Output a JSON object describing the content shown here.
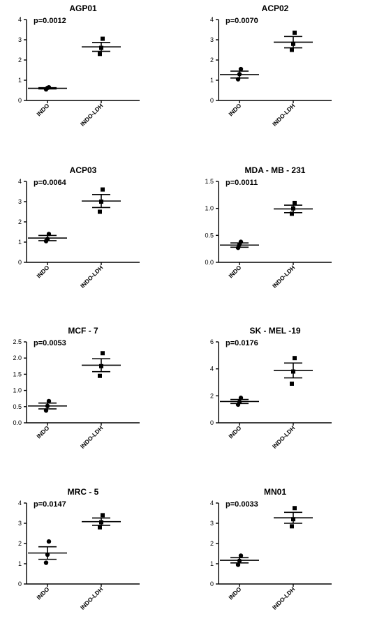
{
  "chart_data": [
    {
      "type": "scatter",
      "title": "AGP01",
      "annotation": "p=0.0012",
      "categories": [
        "INDO",
        "INDO-LDH"
      ],
      "ylim": [
        0,
        4
      ],
      "yticks": [
        "0",
        "1",
        "2",
        "3",
        "4"
      ],
      "groups": [
        {
          "name": "INDO",
          "marker": "circle",
          "points": [
            0.55,
            0.62,
            0.65
          ],
          "mean": 0.6,
          "sem": 0.03
        },
        {
          "name": "INDO-LDH",
          "marker": "square",
          "points": [
            2.3,
            2.6,
            3.05
          ],
          "mean": 2.65,
          "sem": 0.22
        }
      ]
    },
    {
      "type": "scatter",
      "title": "ACP02",
      "annotation": "p=0.0070",
      "categories": [
        "INDO",
        "INDO-LDH"
      ],
      "ylim": [
        0,
        4
      ],
      "yticks": [
        "0",
        "1",
        "2",
        "3",
        "4"
      ],
      "groups": [
        {
          "name": "INDO",
          "marker": "circle",
          "points": [
            1.05,
            1.3,
            1.55
          ],
          "mean": 1.28,
          "sem": 0.17
        },
        {
          "name": "INDO-LDH",
          "marker": "square",
          "points": [
            2.5,
            2.8,
            3.35
          ],
          "mean": 2.88,
          "sem": 0.28
        }
      ]
    },
    {
      "type": "scatter",
      "title": "ACP03",
      "annotation": "p=0.0064",
      "categories": [
        "INDO",
        "INDO-LDH"
      ],
      "ylim": [
        0,
        4
      ],
      "yticks": [
        "0",
        "1",
        "2",
        "3",
        "4"
      ],
      "groups": [
        {
          "name": "INDO",
          "marker": "circle",
          "points": [
            1.05,
            1.15,
            1.4
          ],
          "mean": 1.2,
          "sem": 0.13
        },
        {
          "name": "INDO-LDH",
          "marker": "square",
          "points": [
            2.5,
            3.0,
            3.6
          ],
          "mean": 3.03,
          "sem": 0.32
        }
      ]
    },
    {
      "type": "scatter",
      "title": "MDA - MB - 231",
      "annotation": "p=0.0011",
      "categories": [
        "INDO",
        "INDO-LDH"
      ],
      "ylim": [
        0,
        1.5
      ],
      "yticks": [
        "0.0",
        "0.5",
        "1.0",
        "1.5"
      ],
      "groups": [
        {
          "name": "INDO",
          "marker": "circle",
          "points": [
            0.27,
            0.33,
            0.38
          ],
          "mean": 0.32,
          "sem": 0.04
        },
        {
          "name": "INDO-LDH",
          "marker": "square",
          "points": [
            0.9,
            1.0,
            1.1
          ],
          "mean": 0.99,
          "sem": 0.07
        }
      ]
    },
    {
      "type": "scatter",
      "title": "MCF - 7",
      "annotation": "p=0.0053",
      "categories": [
        "INDO",
        "INDO-LDH"
      ],
      "ylim": [
        0,
        2.5
      ],
      "yticks": [
        "0.0",
        "0.5",
        "1.0",
        "1.5",
        "2.0",
        "2.5"
      ],
      "groups": [
        {
          "name": "INDO",
          "marker": "circle",
          "points": [
            0.38,
            0.52,
            0.67
          ],
          "mean": 0.52,
          "sem": 0.09
        },
        {
          "name": "INDO-LDH",
          "marker": "square",
          "points": [
            1.45,
            1.75,
            2.15
          ],
          "mean": 1.78,
          "sem": 0.2
        }
      ]
    },
    {
      "type": "scatter",
      "title": "SK - MEL -19",
      "annotation": "p=0.0176",
      "categories": [
        "INDO",
        "INDO-LDH"
      ],
      "ylim": [
        0,
        6
      ],
      "yticks": [
        "0",
        "2",
        "4",
        "6"
      ],
      "groups": [
        {
          "name": "INDO",
          "marker": "circle",
          "points": [
            1.35,
            1.55,
            1.85
          ],
          "mean": 1.58,
          "sem": 0.15
        },
        {
          "name": "INDO-LDH",
          "marker": "square",
          "points": [
            2.9,
            3.8,
            4.8
          ],
          "mean": 3.88,
          "sem": 0.55
        }
      ]
    },
    {
      "type": "scatter",
      "title": "MRC - 5",
      "annotation": "p=0.0147",
      "categories": [
        "INDO",
        "INDO-LDH"
      ],
      "ylim": [
        0,
        4
      ],
      "yticks": [
        "0",
        "1",
        "2",
        "3",
        "4"
      ],
      "groups": [
        {
          "name": "INDO",
          "marker": "circle",
          "points": [
            1.05,
            1.45,
            2.1
          ],
          "mean": 1.53,
          "sem": 0.31
        },
        {
          "name": "INDO-LDH",
          "marker": "square",
          "points": [
            2.8,
            3.05,
            3.4
          ],
          "mean": 3.08,
          "sem": 0.18
        }
      ]
    },
    {
      "type": "scatter",
      "title": "MN01",
      "annotation": "p=0.0033",
      "categories": [
        "INDO",
        "INDO-LDH"
      ],
      "ylim": [
        0,
        4
      ],
      "yticks": [
        "0",
        "1",
        "2",
        "3",
        "4"
      ],
      "groups": [
        {
          "name": "INDO",
          "marker": "circle",
          "points": [
            0.95,
            1.15,
            1.4
          ],
          "mean": 1.17,
          "sem": 0.13
        },
        {
          "name": "INDO-LDH",
          "marker": "square",
          "points": [
            2.85,
            3.2,
            3.75
          ],
          "mean": 3.27,
          "sem": 0.27
        }
      ]
    }
  ]
}
